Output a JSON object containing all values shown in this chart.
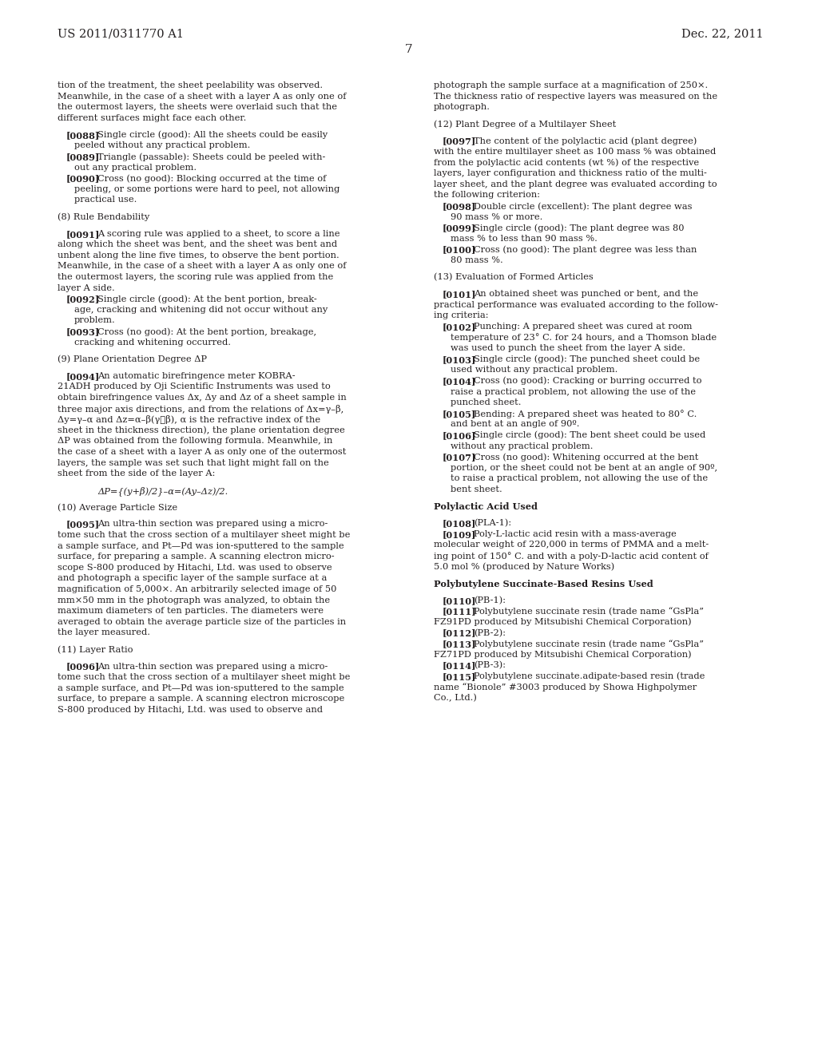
{
  "header_left": "US 2011/0311770 A1",
  "header_right": "Dec. 22, 2011",
  "page_number": "7",
  "background_color": "#ffffff",
  "text_color": "#231f20",
  "figsize": [
    10.24,
    13.2
  ],
  "dpi": 100,
  "left_col_lines": [
    "tion of the treatment, the sheet peelability was observed.",
    "Meanwhile, in the case of a sheet with a layer A as only one of",
    "the outermost layers, the sheets were overlaid such that the",
    "different surfaces might face each other.",
    "",
    "   [0088]   Single circle (good): All the sheets could be easily",
    "      peeled without any practical problem.",
    "   [0089]   Triangle (passable): Sheets could be peeled with-",
    "      out any practical problem.",
    "   [0090]   Cross (no good): Blocking occurred at the time of",
    "      peeling, or some portions were hard to peel, not allowing",
    "      practical use.",
    "",
    "(8) Rule Bendability",
    "",
    "   [0091]   A scoring rule was applied to a sheet, to score a line",
    "along which the sheet was bent, and the sheet was bent and",
    "unbent along the line five times, to observe the bent portion.",
    "Meanwhile, in the case of a sheet with a layer A as only one of",
    "the outermost layers, the scoring rule was applied from the",
    "layer A side.",
    "   [0092]   Single circle (good): At the bent portion, break-",
    "      age, cracking and whitening did not occur without any",
    "      problem.",
    "   [0093]   Cross (no good): At the bent portion, breakage,",
    "      cracking and whitening occurred.",
    "",
    "(9) Plane Orientation Degree ΔP",
    "",
    "   [0094]   An automatic birefringence meter KOBRA-",
    "21ADH produced by Oji Scientific Instruments was used to",
    "obtain birefringence values Δx, Δy and Δz of a sheet sample in",
    "three major axis directions, and from the relations of Δx=γ–β,",
    "Δy=γ–α and Δz=α–β(γ≧β), α is the refractive index of the",
    "sheet in the thickness direction), the plane orientation degree",
    "ΔP was obtained from the following formula. Meanwhile, in",
    "the case of a sheet with a layer A as only one of the outermost",
    "layers, the sample was set such that light might fall on the",
    "sheet from the side of the layer A:",
    "",
    "      ΔP={(y+β)/2}–α=(Ay–Δz)/2.",
    "",
    "(10) Average Particle Size",
    "",
    "   [0095]   An ultra-thin section was prepared using a micro-",
    "tome such that the cross section of a multilayer sheet might be",
    "a sample surface, and Pt—Pd was ion-sputtered to the sample",
    "surface, for preparing a sample. A scanning electron micro-",
    "scope S-800 produced by Hitachi, Ltd. was used to observe",
    "and photograph a specific layer of the sample surface at a",
    "magnification of 5,000×. An arbitrarily selected image of 50",
    "mm×50 mm in the photograph was analyzed, to obtain the",
    "maximum diameters of ten particles. The diameters were",
    "averaged to obtain the average particle size of the particles in",
    "the layer measured.",
    "",
    "(11) Layer Ratio",
    "",
    "   [0096]   An ultra-thin section was prepared using a micro-",
    "tome such that the cross section of a multilayer sheet might be",
    "a sample surface, and Pt—Pd was ion-sputtered to the sample",
    "surface, to prepare a sample. A scanning electron microscope",
    "S-800 produced by Hitachi, Ltd. was used to observe and"
  ],
  "right_col_lines": [
    "photograph the sample surface at a magnification of 250×.",
    "The thickness ratio of respective layers was measured on the",
    "photograph.",
    "",
    "(12) Plant Degree of a Multilayer Sheet",
    "",
    "   [0097]   The content of the polylactic acid (plant degree)",
    "with the entire multilayer sheet as 100 mass % was obtained",
    "from the polylactic acid contents (wt %) of the respective",
    "layers, layer configuration and thickness ratio of the multi-",
    "layer sheet, and the plant degree was evaluated according to",
    "the following criterion:",
    "   [0098]   Double circle (excellent): The plant degree was",
    "      90 mass % or more.",
    "   [0099]   Single circle (good): The plant degree was 80",
    "      mass % to less than 90 mass %.",
    "   [0100]   Cross (no good): The plant degree was less than",
    "      80 mass %.",
    "",
    "(13) Evaluation of Formed Articles",
    "",
    "   [0101]   An obtained sheet was punched or bent, and the",
    "practical performance was evaluated according to the follow-",
    "ing criteria:",
    "   [0102]   Punching: A prepared sheet was cured at room",
    "      temperature of 23° C. for 24 hours, and a Thomson blade",
    "      was used to punch the sheet from the layer A side.",
    "   [0103]   Single circle (good): The punched sheet could be",
    "      used without any practical problem.",
    "   [0104]   Cross (no good): Cracking or burring occurred to",
    "      raise a practical problem, not allowing the use of the",
    "      punched sheet.",
    "   [0105]   Bending: A prepared sheet was heated to 80° C.",
    "      and bent at an angle of 90º.",
    "   [0106]   Single circle (good): The bent sheet could be used",
    "      without any practical problem.",
    "   [0107]   Cross (no good): Whitening occurred at the bent",
    "      portion, or the sheet could not be bent at an angle of 90º,",
    "      to raise a practical problem, not allowing the use of the",
    "      bent sheet.",
    "",
    "Polylactic Acid Used",
    "",
    "   [0108]   (PLA-1):",
    "   [0109]   Poly-L-lactic acid resin with a mass-average",
    "molecular weight of 220,000 in terms of PMMA and a melt-",
    "ing point of 150° C. and with a poly-D-lactic acid content of",
    "5.0 mol % (produced by Nature Works)",
    "",
    "Polybutylene Succinate-Based Resins Used",
    "",
    "   [0110]   (PB-1):",
    "   [0111]   Polybutylene succinate resin (trade name “GsPla”",
    "FZ91PD produced by Mitsubishi Chemical Corporation)",
    "   [0112]   (PB-2):",
    "   [0113]   Polybutylene succinate resin (trade name “GsPla”",
    "FZ71PD produced by Mitsubishi Chemical Corporation)",
    "   [0114]   (PB-3):",
    "   [0115]   Polybutylene succinate.adipate-based resin (trade",
    "name “Bionole” #3003 produced by Showa Highpolymer",
    "Co., Ltd.)"
  ],
  "bold_tags": [
    "[0088]",
    "[0089]",
    "[0090]",
    "[0091]",
    "[0092]",
    "[0093]",
    "[0094]",
    "[0095]",
    "[0096]",
    "[0097]",
    "[0098]",
    "[0099]",
    "[0100]",
    "[0101]",
    "[0102]",
    "[0103]",
    "[0104]",
    "[0105]",
    "[0106]",
    "[0107]",
    "[0108]",
    "[0109]",
    "[0110]",
    "[0111]",
    "[0112]",
    "[0113]",
    "[0114]",
    "[0115]"
  ],
  "bold_section_starts": [
    "Polylactic Acid Used",
    "Polybutylene Succinate-Based Resins Used"
  ],
  "italic_lines": [
    "      ΔP={(y+β)/2}–α=(Ay–Δz)/2."
  ]
}
